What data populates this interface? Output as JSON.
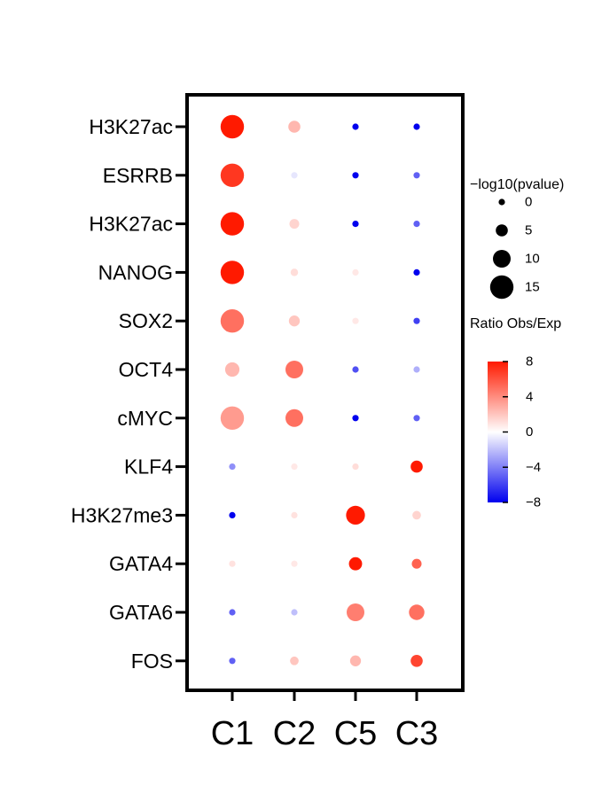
{
  "chart_data": {
    "type": "dotplot",
    "rows": [
      "H3K27ac",
      "ESRRB",
      "H3K27ac",
      "NANOG",
      "SOX2",
      "OCT4",
      "cMYC",
      "KLF4",
      "H3K27me3",
      "GATA4",
      "GATA6",
      "FOS"
    ],
    "columns": [
      "C1",
      "C2",
      "C5",
      "C3"
    ],
    "ratio": [
      [
        8.0,
        2.5,
        -8.0,
        -8.0
      ],
      [
        7.0,
        -0.8,
        -8.0,
        -5.0
      ],
      [
        8.0,
        1.5,
        -8.0,
        -5.0
      ],
      [
        8.0,
        1.2,
        0.8,
        -8.0
      ],
      [
        5.0,
        2.0,
        0.8,
        -6.0
      ],
      [
        2.5,
        5.0,
        -5.5,
        -2.5
      ],
      [
        3.5,
        5.0,
        -8.0,
        -5.0
      ],
      [
        -3.5,
        0.8,
        1.2,
        8.0
      ],
      [
        -8.0,
        1.0,
        8.0,
        1.5
      ],
      [
        1.0,
        0.8,
        8.0,
        5.5
      ],
      [
        -5.0,
        -2.0,
        4.5,
        5.0
      ],
      [
        -5.0,
        2.0,
        2.5,
        6.5
      ]
    ],
    "neglog10p": [
      [
        15,
        5,
        0,
        0
      ],
      [
        15,
        0,
        0,
        0
      ],
      [
        15,
        3,
        0,
        0
      ],
      [
        15,
        1,
        0,
        0
      ],
      [
        15,
        4,
        0,
        0
      ],
      [
        7,
        10,
        0,
        0
      ],
      [
        15,
        10,
        0,
        0
      ],
      [
        0,
        0,
        0,
        5
      ],
      [
        0,
        0,
        11,
        2
      ],
      [
        0,
        0,
        6,
        3
      ],
      [
        0,
        0,
        10,
        8
      ],
      [
        0,
        2,
        4,
        5
      ]
    ],
    "size_legend": {
      "title": "−log10(pvalue)",
      "values": [
        0,
        5,
        10,
        15
      ],
      "labels": [
        "0",
        "5",
        "10",
        "15"
      ]
    },
    "color_legend": {
      "title": "Ratio Obs/Exp",
      "range": [
        -8,
        8
      ],
      "ticks": [
        8,
        4,
        0,
        -4,
        -8
      ],
      "tick_labels": [
        "8",
        "4",
        "0",
        "−4",
        "−8"
      ],
      "colors": {
        "low": "#0000ee",
        "mid": "#ffffff",
        "high": "#ff1a00"
      }
    }
  }
}
